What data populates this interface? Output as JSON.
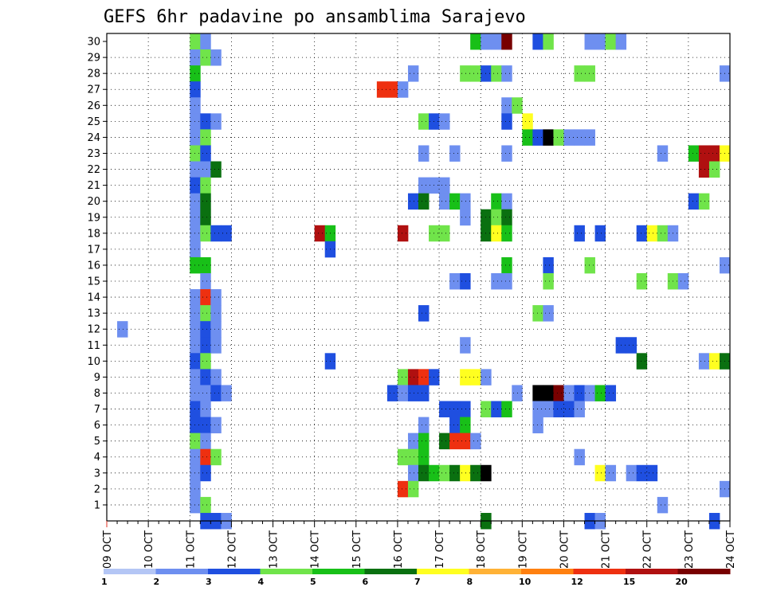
{
  "chart_data": {
    "type": "heatmap",
    "title": "GEFS 6hr padavine po ansamblima Sarajevo",
    "xlabel": "",
    "ylabel": "",
    "x_tick_labels": [
      "09 OCT",
      "10 OCT",
      "11 OCT",
      "12 OCT",
      "13 OCT",
      "14 OCT",
      "15 OCT",
      "16 OCT",
      "17 OCT",
      "18 OCT",
      "19 OCT",
      "20 OCT",
      "21 OCT",
      "22 OCT",
      "23 OCT",
      "24 OCT"
    ],
    "y_tick_labels": [
      "1",
      "2",
      "3",
      "4",
      "5",
      "6",
      "7",
      "8",
      "9",
      "10",
      "11",
      "12",
      "13",
      "14",
      "15",
      "16",
      "17",
      "18",
      "19",
      "20",
      "21",
      "22",
      "23",
      "24",
      "25",
      "26",
      "27",
      "28",
      "29",
      "30"
    ],
    "x_range": [
      0,
      60
    ],
    "y_range": [
      0,
      30
    ],
    "grid": true,
    "legend": {
      "placement": "bottom",
      "thresholds": [
        "1",
        "2",
        "3",
        "4",
        "5",
        "6",
        "7",
        "8",
        "10",
        "12",
        "15",
        "20"
      ],
      "colors": [
        "#b4c6f5",
        "#6e8ff0",
        "#1f4fe0",
        "#70e44a",
        "#18c018",
        "#0a7010",
        "#ffff20",
        "#ffb236",
        "#ff8010",
        "#ee3010",
        "#b01010",
        "#780000"
      ]
    },
    "cells": [
      [
        30,
        8,
        3
      ],
      [
        30,
        9,
        1
      ],
      [
        30,
        35,
        4
      ],
      [
        30,
        36,
        1
      ],
      [
        30,
        37,
        1
      ],
      [
        30,
        38,
        11
      ],
      [
        30,
        41,
        2
      ],
      [
        30,
        42,
        3
      ],
      [
        30,
        46,
        1
      ],
      [
        30,
        47,
        1
      ],
      [
        30,
        48,
        3
      ],
      [
        30,
        49,
        1
      ],
      [
        29,
        8,
        1
      ],
      [
        29,
        9,
        3
      ],
      [
        29,
        10,
        1
      ],
      [
        28,
        8,
        4
      ],
      [
        28,
        29,
        1
      ],
      [
        28,
        34,
        3
      ],
      [
        28,
        35,
        3
      ],
      [
        28,
        36,
        2
      ],
      [
        28,
        37,
        3
      ],
      [
        28,
        38,
        1
      ],
      [
        28,
        45,
        3
      ],
      [
        28,
        46,
        3
      ],
      [
        28,
        59,
        1
      ],
      [
        27,
        8,
        2
      ],
      [
        27,
        26,
        9
      ],
      [
        27,
        27,
        9
      ],
      [
        27,
        28,
        1
      ],
      [
        26,
        8,
        1
      ],
      [
        26,
        38,
        1
      ],
      [
        26,
        39,
        3
      ],
      [
        25,
        8,
        1
      ],
      [
        25,
        9,
        2
      ],
      [
        25,
        10,
        1
      ],
      [
        25,
        30,
        3
      ],
      [
        25,
        31,
        2
      ],
      [
        25,
        32,
        1
      ],
      [
        25,
        38,
        2
      ],
      [
        25,
        40,
        6
      ],
      [
        24,
        8,
        1
      ],
      [
        24,
        9,
        3
      ],
      [
        24,
        40,
        4
      ],
      [
        24,
        41,
        2
      ],
      [
        24,
        42,
        12
      ],
      [
        24,
        43,
        3
      ],
      [
        24,
        44,
        1
      ],
      [
        24,
        45,
        1
      ],
      [
        24,
        46,
        1
      ],
      [
        23,
        8,
        3
      ],
      [
        23,
        9,
        2
      ],
      [
        23,
        30,
        1
      ],
      [
        23,
        33,
        1
      ],
      [
        23,
        38,
        1
      ],
      [
        23,
        53,
        1
      ],
      [
        23,
        56,
        4
      ],
      [
        23,
        57,
        10
      ],
      [
        23,
        58,
        10
      ],
      [
        23,
        59,
        6
      ],
      [
        22,
        8,
        1
      ],
      [
        22,
        9,
        1
      ],
      [
        22,
        10,
        5
      ],
      [
        22,
        57,
        10
      ],
      [
        22,
        58,
        3
      ],
      [
        21,
        8,
        2
      ],
      [
        21,
        9,
        3
      ],
      [
        21,
        30,
        1
      ],
      [
        21,
        31,
        1
      ],
      [
        21,
        32,
        1
      ],
      [
        20,
        8,
        1
      ],
      [
        20,
        9,
        5
      ],
      [
        20,
        29,
        2
      ],
      [
        20,
        30,
        5
      ],
      [
        20,
        32,
        1
      ],
      [
        20,
        33,
        4
      ],
      [
        20,
        34,
        1
      ],
      [
        20,
        37,
        4
      ],
      [
        20,
        38,
        1
      ],
      [
        20,
        56,
        2
      ],
      [
        20,
        57,
        3
      ],
      [
        19,
        8,
        1
      ],
      [
        19,
        9,
        5
      ],
      [
        19,
        34,
        1
      ],
      [
        19,
        36,
        5
      ],
      [
        19,
        37,
        3
      ],
      [
        19,
        38,
        5
      ],
      [
        18,
        8,
        1
      ],
      [
        18,
        9,
        3
      ],
      [
        18,
        10,
        2
      ],
      [
        18,
        11,
        2
      ],
      [
        18,
        20,
        10
      ],
      [
        18,
        21,
        4
      ],
      [
        18,
        28,
        10
      ],
      [
        18,
        31,
        3
      ],
      [
        18,
        32,
        3
      ],
      [
        18,
        36,
        5
      ],
      [
        18,
        37,
        6
      ],
      [
        18,
        38,
        4
      ],
      [
        18,
        45,
        2
      ],
      [
        18,
        47,
        2
      ],
      [
        18,
        51,
        2
      ],
      [
        18,
        52,
        6
      ],
      [
        18,
        53,
        3
      ],
      [
        18,
        54,
        1
      ],
      [
        17,
        8,
        1
      ],
      [
        17,
        21,
        2
      ],
      [
        16,
        8,
        4
      ],
      [
        16,
        9,
        4
      ],
      [
        16,
        38,
        4
      ],
      [
        16,
        42,
        2
      ],
      [
        16,
        46,
        3
      ],
      [
        16,
        59,
        1
      ],
      [
        15,
        9,
        1
      ],
      [
        15,
        33,
        1
      ],
      [
        15,
        34,
        2
      ],
      [
        15,
        37,
        1
      ],
      [
        15,
        38,
        1
      ],
      [
        15,
        42,
        3
      ],
      [
        15,
        51,
        3
      ],
      [
        15,
        54,
        3
      ],
      [
        15,
        55,
        1
      ],
      [
        14,
        8,
        1
      ],
      [
        14,
        9,
        9
      ],
      [
        14,
        10,
        1
      ],
      [
        13,
        8,
        1
      ],
      [
        13,
        9,
        3
      ],
      [
        13,
        10,
        1
      ],
      [
        13,
        30,
        2
      ],
      [
        13,
        41,
        3
      ],
      [
        13,
        42,
        1
      ],
      [
        12,
        1,
        1
      ],
      [
        12,
        8,
        1
      ],
      [
        12,
        9,
        2
      ],
      [
        12,
        10,
        1
      ],
      [
        11,
        8,
        1
      ],
      [
        11,
        9,
        2
      ],
      [
        11,
        10,
        1
      ],
      [
        11,
        34,
        1
      ],
      [
        11,
        49,
        2
      ],
      [
        11,
        50,
        2
      ],
      [
        10,
        8,
        2
      ],
      [
        10,
        9,
        3
      ],
      [
        10,
        21,
        2
      ],
      [
        10,
        51,
        5
      ],
      [
        10,
        57,
        1
      ],
      [
        10,
        58,
        6
      ],
      [
        10,
        59,
        5
      ],
      [
        9,
        8,
        1
      ],
      [
        9,
        9,
        2
      ],
      [
        9,
        10,
        1
      ],
      [
        9,
        28,
        3
      ],
      [
        9,
        29,
        10
      ],
      [
        9,
        30,
        9
      ],
      [
        9,
        31,
        2
      ],
      [
        9,
        34,
        6
      ],
      [
        9,
        35,
        6
      ],
      [
        9,
        36,
        1
      ],
      [
        8,
        8,
        1
      ],
      [
        8,
        9,
        1
      ],
      [
        8,
        10,
        2
      ],
      [
        8,
        11,
        1
      ],
      [
        8,
        27,
        2
      ],
      [
        8,
        28,
        1
      ],
      [
        8,
        29,
        2
      ],
      [
        8,
        30,
        2
      ],
      [
        8,
        39,
        1
      ],
      [
        8,
        41,
        12
      ],
      [
        8,
        42,
        12
      ],
      [
        8,
        43,
        11
      ],
      [
        8,
        44,
        1
      ],
      [
        8,
        45,
        2
      ],
      [
        8,
        46,
        1
      ],
      [
        8,
        47,
        4
      ],
      [
        8,
        48,
        2
      ],
      [
        7,
        8,
        2
      ],
      [
        7,
        9,
        1
      ],
      [
        7,
        32,
        2
      ],
      [
        7,
        33,
        2
      ],
      [
        7,
        34,
        2
      ],
      [
        7,
        36,
        3
      ],
      [
        7,
        37,
        2
      ],
      [
        7,
        38,
        4
      ],
      [
        7,
        41,
        1
      ],
      [
        7,
        42,
        1
      ],
      [
        7,
        43,
        2
      ],
      [
        7,
        44,
        2
      ],
      [
        7,
        45,
        1
      ],
      [
        6,
        8,
        2
      ],
      [
        6,
        9,
        2
      ],
      [
        6,
        10,
        1
      ],
      [
        6,
        30,
        1
      ],
      [
        6,
        33,
        2
      ],
      [
        6,
        34,
        4
      ],
      [
        6,
        41,
        1
      ],
      [
        5,
        8,
        3
      ],
      [
        5,
        9,
        1
      ],
      [
        5,
        29,
        1
      ],
      [
        5,
        30,
        4
      ],
      [
        5,
        32,
        5
      ],
      [
        5,
        33,
        9
      ],
      [
        5,
        34,
        9
      ],
      [
        5,
        35,
        1
      ],
      [
        4,
        8,
        1
      ],
      [
        4,
        9,
        9
      ],
      [
        4,
        10,
        3
      ],
      [
        4,
        28,
        3
      ],
      [
        4,
        29,
        3
      ],
      [
        4,
        30,
        4
      ],
      [
        4,
        45,
        1
      ],
      [
        3,
        8,
        1
      ],
      [
        3,
        9,
        2
      ],
      [
        3,
        29,
        1
      ],
      [
        3,
        30,
        5
      ],
      [
        3,
        31,
        4
      ],
      [
        3,
        32,
        3
      ],
      [
        3,
        33,
        5
      ],
      [
        3,
        34,
        6
      ],
      [
        3,
        35,
        5
      ],
      [
        3,
        36,
        12
      ],
      [
        3,
        47,
        6
      ],
      [
        3,
        48,
        1
      ],
      [
        3,
        50,
        1
      ],
      [
        3,
        51,
        2
      ],
      [
        3,
        52,
        2
      ],
      [
        2,
        8,
        1
      ],
      [
        2,
        28,
        9
      ],
      [
        2,
        29,
        3
      ],
      [
        2,
        59,
        1
      ],
      [
        1,
        8,
        1
      ],
      [
        1,
        9,
        3
      ],
      [
        1,
        53,
        1
      ],
      [
        0,
        9,
        2
      ],
      [
        0,
        10,
        2
      ],
      [
        0,
        11,
        1
      ],
      [
        0,
        36,
        5
      ],
      [
        0,
        46,
        2
      ],
      [
        0,
        47,
        1
      ],
      [
        0,
        58,
        2
      ]
    ]
  }
}
